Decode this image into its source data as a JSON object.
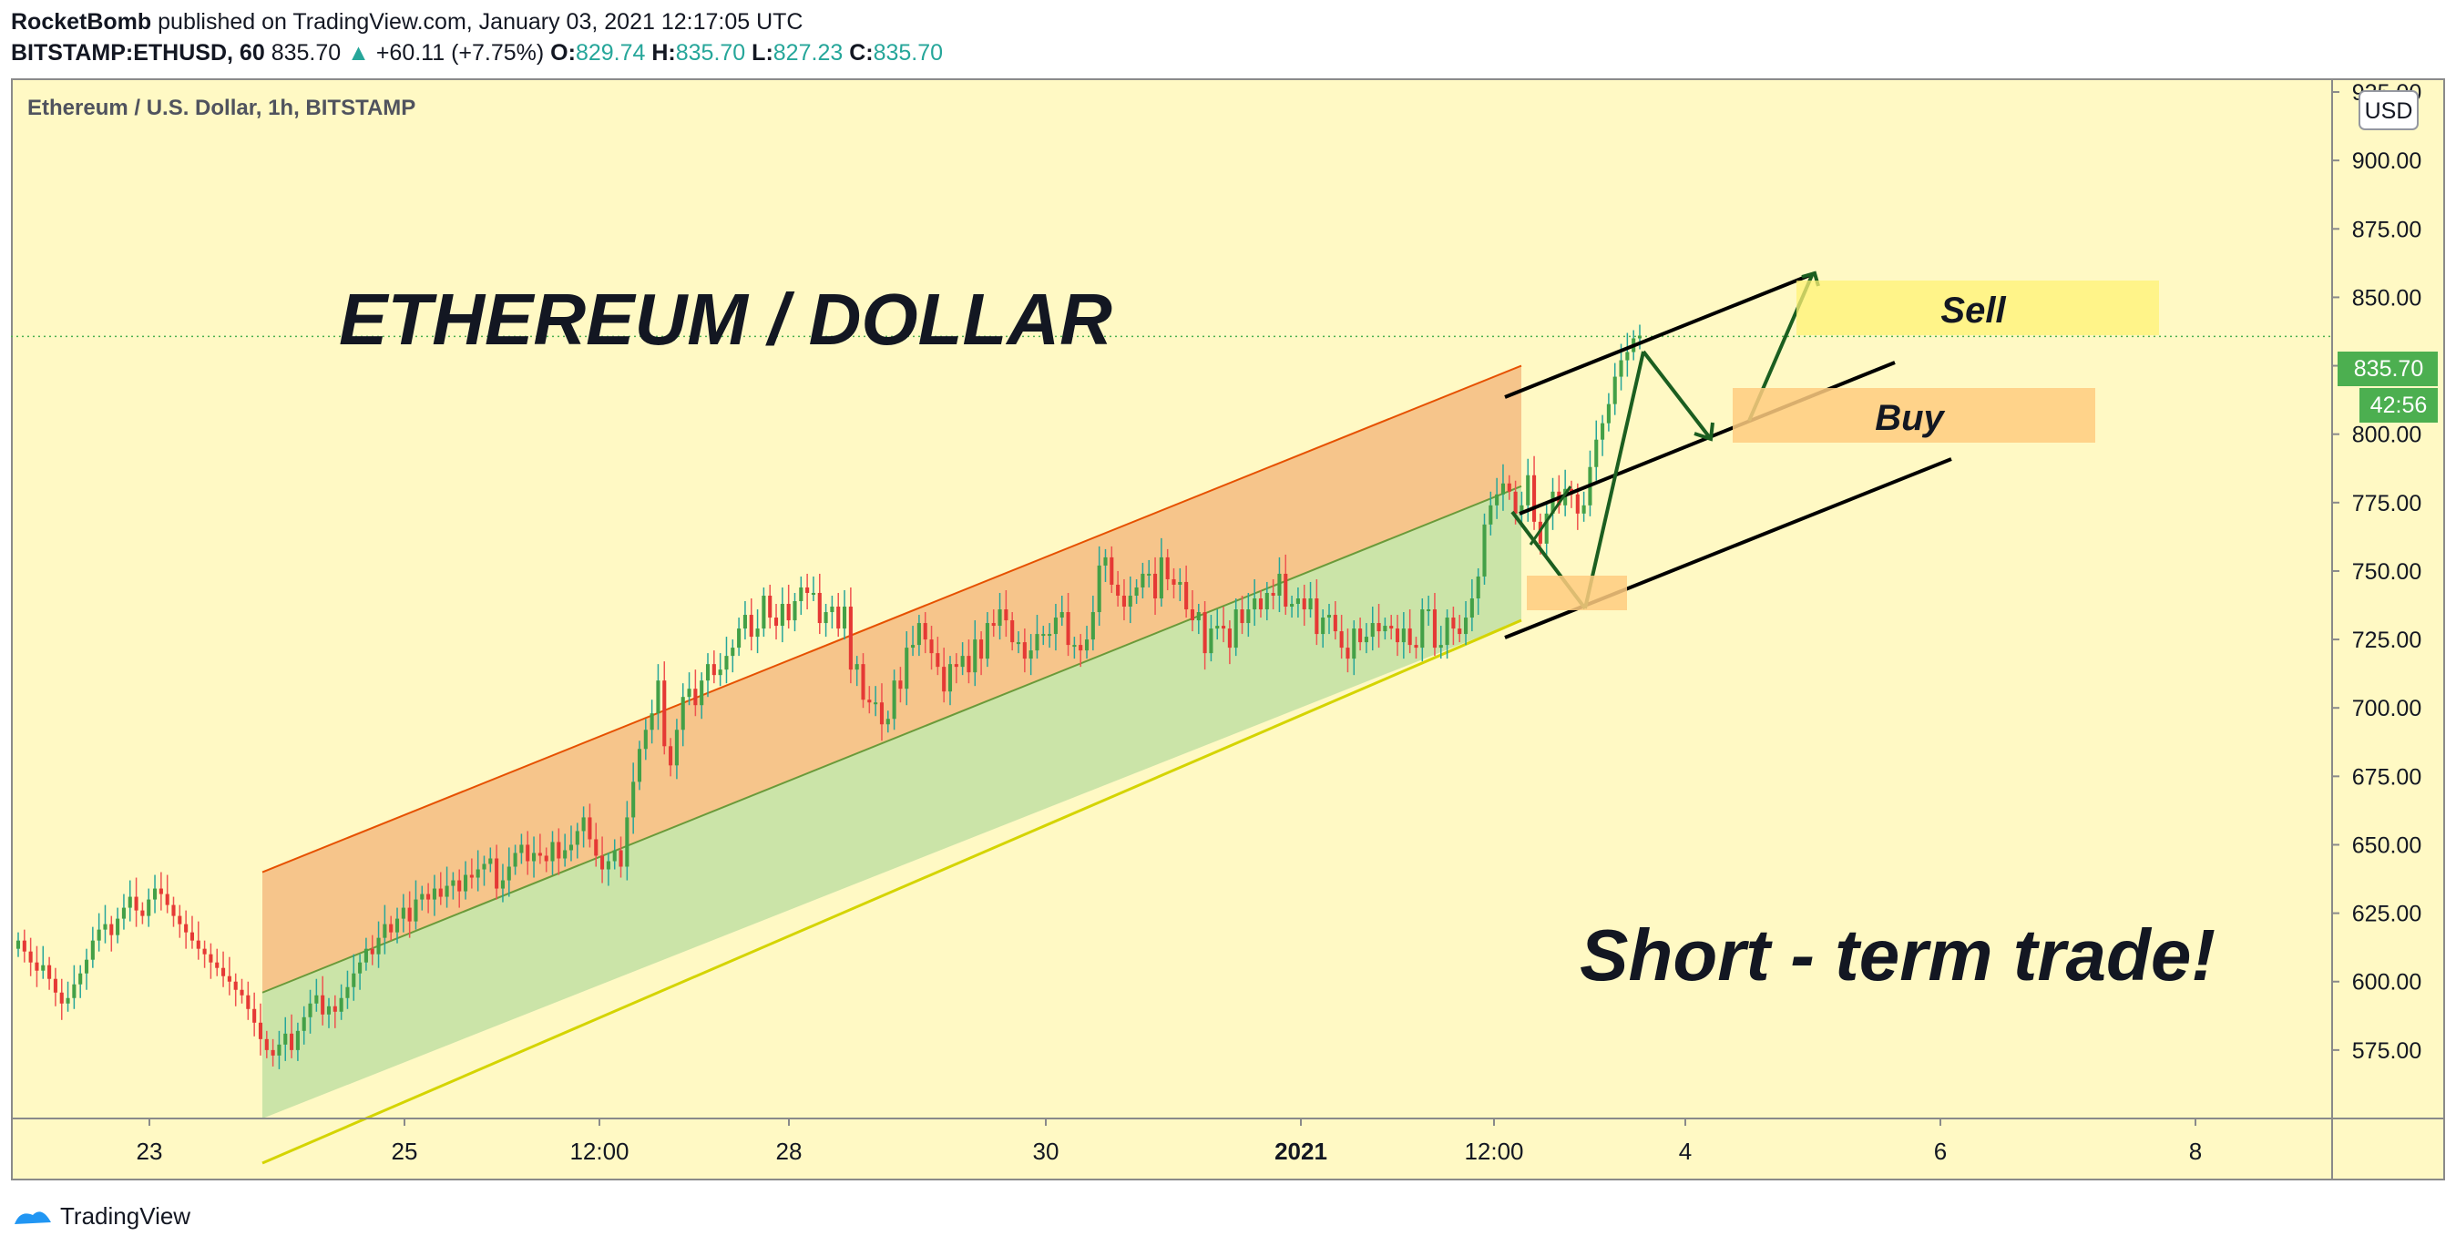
{
  "header": {
    "author": "RocketBomb",
    "published_text": " published on TradingView.com, January 03, 2021 12:17:05 UTC",
    "symbol": "BITSTAMP:ETHUSD, 60",
    "last": "835.70",
    "change": "+60.11 (+7.75%)",
    "o_label": "O:",
    "o_value": "829.74",
    "h_label": "H:",
    "h_value": "835.70",
    "l_label": "L:",
    "l_value": "827.23",
    "c_label": "C:",
    "c_value": "835.70"
  },
  "footer": {
    "brand": "TradingView"
  },
  "colors": {
    "background": "#fff9c4",
    "candle_up": "#26a69a",
    "candle_down": "#ef5350",
    "upper_band": "#f5bf85",
    "lower_band": "#c5e1a5",
    "price_tag": "#4caf50"
  },
  "chart_data": {
    "type": "candlestick",
    "title": "Ethereum / U.S. Dollar, 1h, BITSTAMP",
    "currency": "USD",
    "ylim": [
      550,
      930
    ],
    "y_ticks": [
      "925.00",
      "900.00",
      "875.00",
      "850.00",
      "825.00",
      "800.00",
      "775.00",
      "750.00",
      "725.00",
      "700.00",
      "675.00",
      "650.00",
      "625.00",
      "600.00",
      "575.00"
    ],
    "x_ticks": [
      "23",
      "25",
      "12:00",
      "28",
      "30",
      "2021",
      "12:00",
      "4",
      "6",
      "8"
    ],
    "last_price": "835.70",
    "countdown": "42:56",
    "annotations": {
      "headline": "ETHEREUM / DOLLAR",
      "subline": "Short - term trade!",
      "sell": "Sell",
      "buy": "Buy"
    },
    "series": [
      {
        "name": "ETHUSD",
        "close": [
          615,
          611,
          607,
          604,
          606,
          601,
          596,
          592,
          594,
          599,
          603,
          608,
          615,
          619,
          621,
          617,
          623,
          627,
          631,
          626,
          624,
          630,
          634,
          632,
          628,
          624,
          621,
          618,
          615,
          612,
          610,
          607,
          605,
          602,
          600,
          597,
          595,
          590,
          585,
          579,
          575,
          573,
          577,
          581,
          575,
          582,
          587,
          592,
          595,
          588,
          591,
          589,
          594,
          598,
          603,
          607,
          612,
          610,
          616,
          621,
          618,
          623,
          627,
          622,
          630,
          632,
          630,
          634,
          631,
          635,
          637,
          633,
          639,
          638,
          641,
          643,
          645,
          634,
          637,
          642,
          647,
          650,
          644,
          647,
          646,
          644,
          651,
          645,
          648,
          650,
          655,
          660,
          652,
          646,
          641,
          644,
          648,
          642,
          660,
          673,
          685,
          692,
          698,
          710,
          686,
          679,
          692,
          704,
          707,
          701,
          710,
          716,
          712,
          714,
          719,
          722,
          729,
          734,
          726,
          729,
          741,
          733,
          730,
          738,
          732,
          739,
          744,
          742,
          742,
          731,
          735,
          737,
          729,
          737,
          714,
          716,
          703,
          702,
          702,
          694,
          696,
          710,
          707,
          722,
          723,
          731,
          725,
          720,
          715,
          706,
          716,
          715,
          719,
          713,
          725,
          718,
          731,
          730,
          736,
          732,
          724,
          724,
          718,
          721,
          727,
          727,
          727,
          733,
          735,
          723,
          723,
          721,
          725,
          735,
          752,
          755,
          745,
          741,
          737,
          741,
          744,
          749,
          749,
          740,
          755,
          747,
          745,
          746,
          736,
          732,
          735,
          720,
          729,
          730,
          729,
          722,
          736,
          731,
          736,
          740,
          736,
          742,
          741,
          749,
          737,
          738,
          740,
          736,
          740,
          727,
          733,
          734,
          728,
          722,
          718,
          729,
          724,
          726,
          731,
          728,
          730,
          729,
          724,
          729,
          723,
          722,
          736,
          736,
          722,
          723,
          733,
          729,
          727,
          733,
          740,
          748,
          767,
          774,
          778,
          782,
          779,
          771,
          774,
          785,
          768,
          760,
          771,
          779,
          774,
          780,
          778,
          771,
          774,
          788,
          798,
          804,
          811,
          821,
          827,
          830,
          835,
          836
        ]
      }
    ]
  }
}
